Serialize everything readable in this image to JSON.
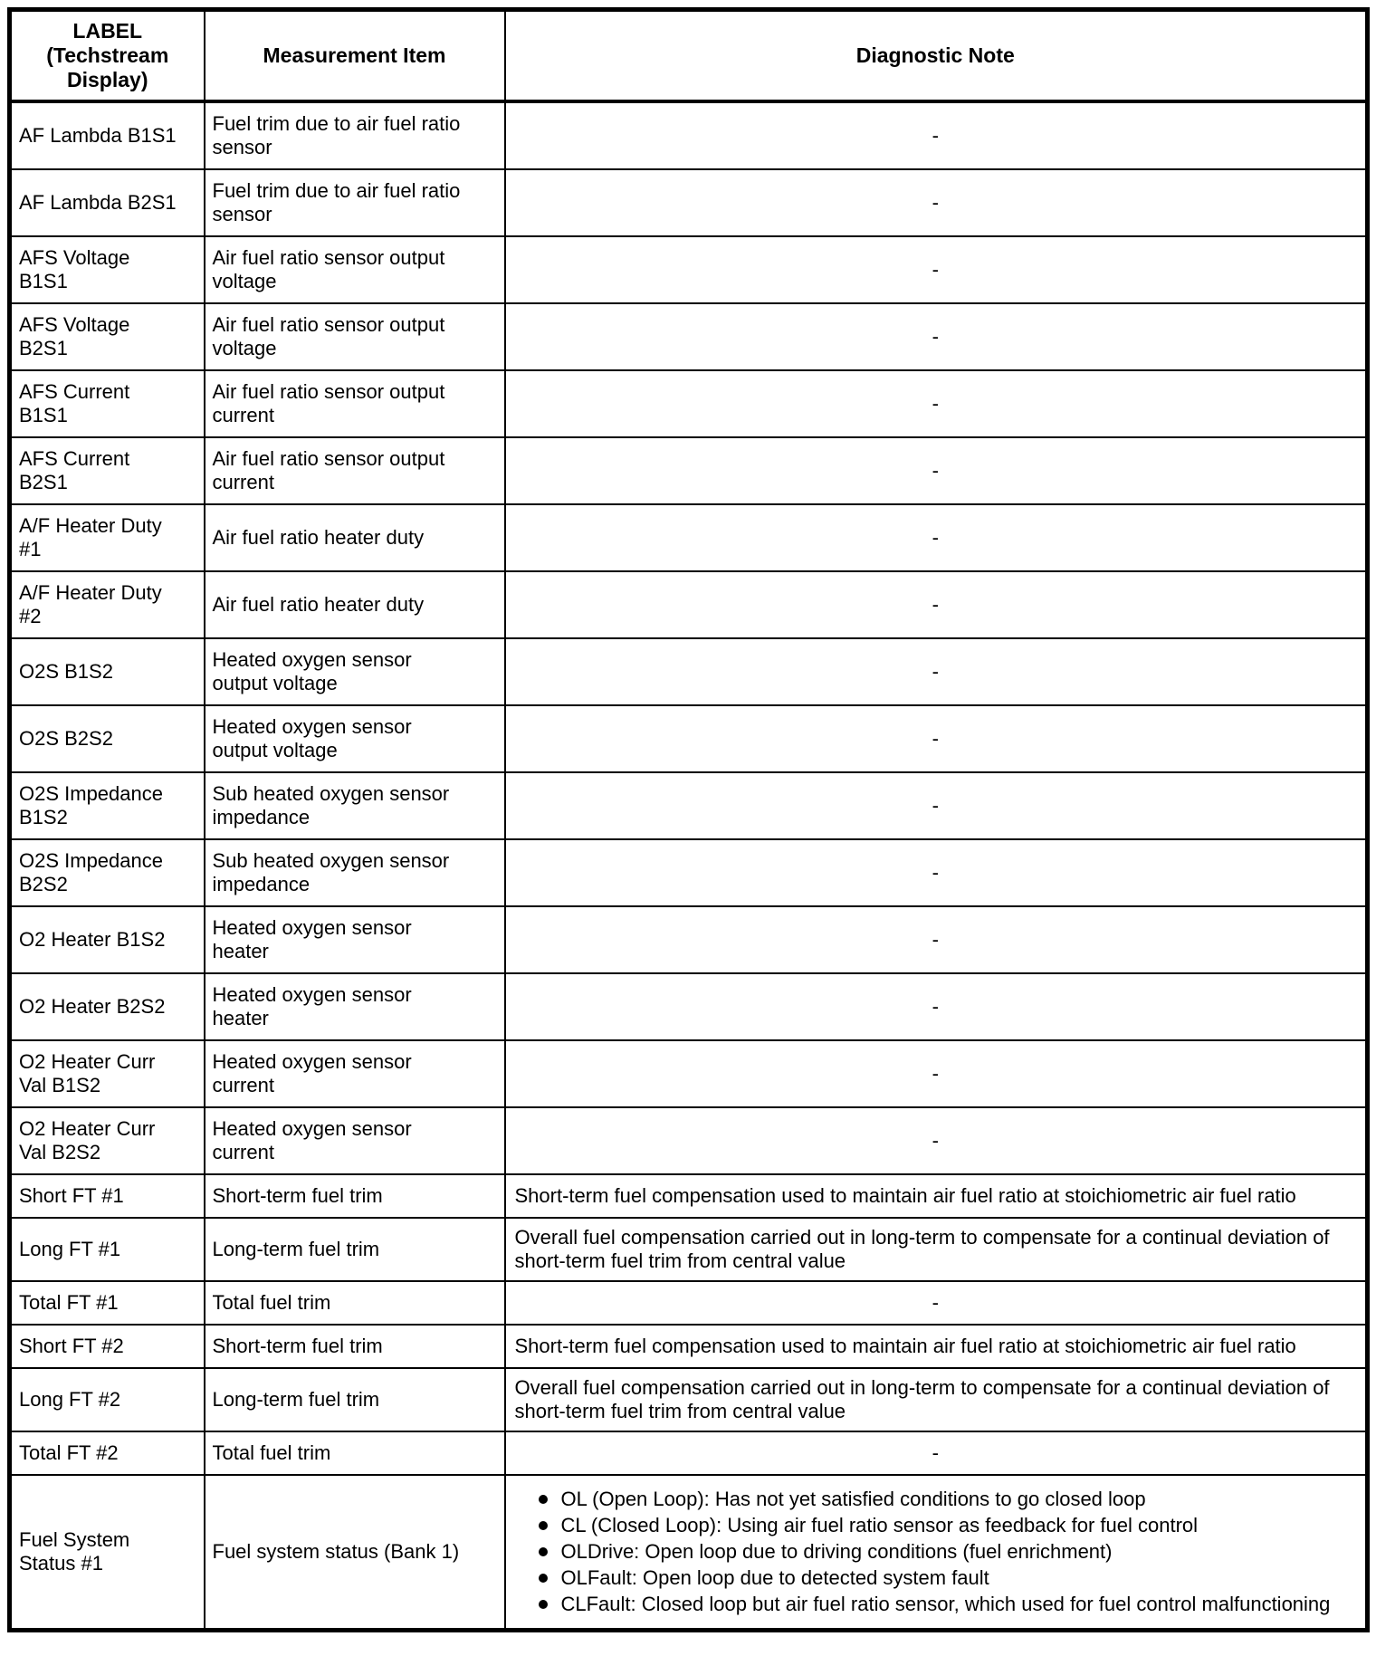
{
  "colors": {
    "border": "#000000",
    "text": "#000000",
    "background": "#ffffff"
  },
  "table": {
    "header": {
      "col1": "LABEL\n(Techstream\nDisplay)",
      "col2": "Measurement Item",
      "col3": "Diagnostic Note"
    },
    "rows": [
      {
        "label": "AF Lambda B1S1",
        "item": "Fuel trim due to air fuel ratio sensor",
        "note": "-"
      },
      {
        "label": "AF Lambda B2S1",
        "item": "Fuel trim due to air fuel ratio sensor",
        "note": "-"
      },
      {
        "label": "AFS Voltage B1S1",
        "item": "Air fuel ratio sensor output voltage",
        "note": "-"
      },
      {
        "label": "AFS Voltage B2S1",
        "item": "Air fuel ratio sensor output voltage",
        "note": "-"
      },
      {
        "label": "AFS Current B1S1",
        "item": "Air fuel ratio sensor output current",
        "note": "-"
      },
      {
        "label": "AFS Current B2S1",
        "item": "Air fuel ratio sensor output current",
        "note": "-"
      },
      {
        "label": "A/F Heater Duty #1",
        "item": "Air fuel ratio heater duty",
        "note": "-"
      },
      {
        "label": "A/F Heater Duty #2",
        "item": "Air fuel ratio heater duty",
        "note": "-"
      },
      {
        "label": "O2S B1S2",
        "item": "Heated oxygen sensor output voltage",
        "note": "-"
      },
      {
        "label": "O2S B2S2",
        "item": "Heated oxygen sensor output voltage",
        "note": "-"
      },
      {
        "label": "O2S Impedance B1S2",
        "item": "Sub heated oxygen sensor impedance",
        "note": "-"
      },
      {
        "label": "O2S Impedance B2S2",
        "item": "Sub heated oxygen sensor impedance",
        "note": "-"
      },
      {
        "label": "O2 Heater B1S2",
        "item": "Heated oxygen sensor heater",
        "note": "-"
      },
      {
        "label": "O2 Heater B2S2",
        "item": "Heated oxygen sensor heater",
        "note": "-"
      },
      {
        "label": "O2 Heater Curr Val B1S2",
        "item": "Heated oxygen sensor current",
        "note": "-"
      },
      {
        "label": "O2 Heater Curr Val B2S2",
        "item": "Heated oxygen sensor current",
        "note": "-"
      },
      {
        "label": "Short FT #1",
        "item": "Short-term fuel trim",
        "note": "Short-term fuel compensation used to maintain air fuel ratio at stoichiometric air fuel ratio"
      },
      {
        "label": "Long FT #1",
        "item": "Long-term fuel trim",
        "note": "Overall fuel compensation carried out in long-term to compensate for a continual deviation of short-term fuel trim from central value"
      },
      {
        "label": "Total FT #1",
        "item": "Total fuel trim",
        "note": "-"
      },
      {
        "label": "Short FT #2",
        "item": "Short-term fuel trim",
        "note": "Short-term fuel compensation used to maintain air fuel ratio at stoichiometric air fuel ratio"
      },
      {
        "label": "Long FT #2",
        "item": "Long-term fuel trim",
        "note": "Overall fuel compensation carried out in long-term to compensate for a continual deviation of short-term fuel trim from central value"
      },
      {
        "label": "Total FT #2",
        "item": "Total fuel trim",
        "note": "-"
      },
      {
        "label": "Fuel System Status #1",
        "item": "Fuel system status (Bank 1)",
        "note_bullets": [
          "OL (Open Loop): Has not yet satisfied conditions to go closed loop",
          "CL (Closed Loop): Using air fuel ratio sensor as feedback for fuel control",
          "OLDrive: Open loop due to driving conditions (fuel enrichment)",
          "OLFault: Open loop due to detected system fault",
          "CLFault: Closed loop but air fuel ratio sensor, which used for fuel control malfunctioning"
        ]
      }
    ]
  }
}
